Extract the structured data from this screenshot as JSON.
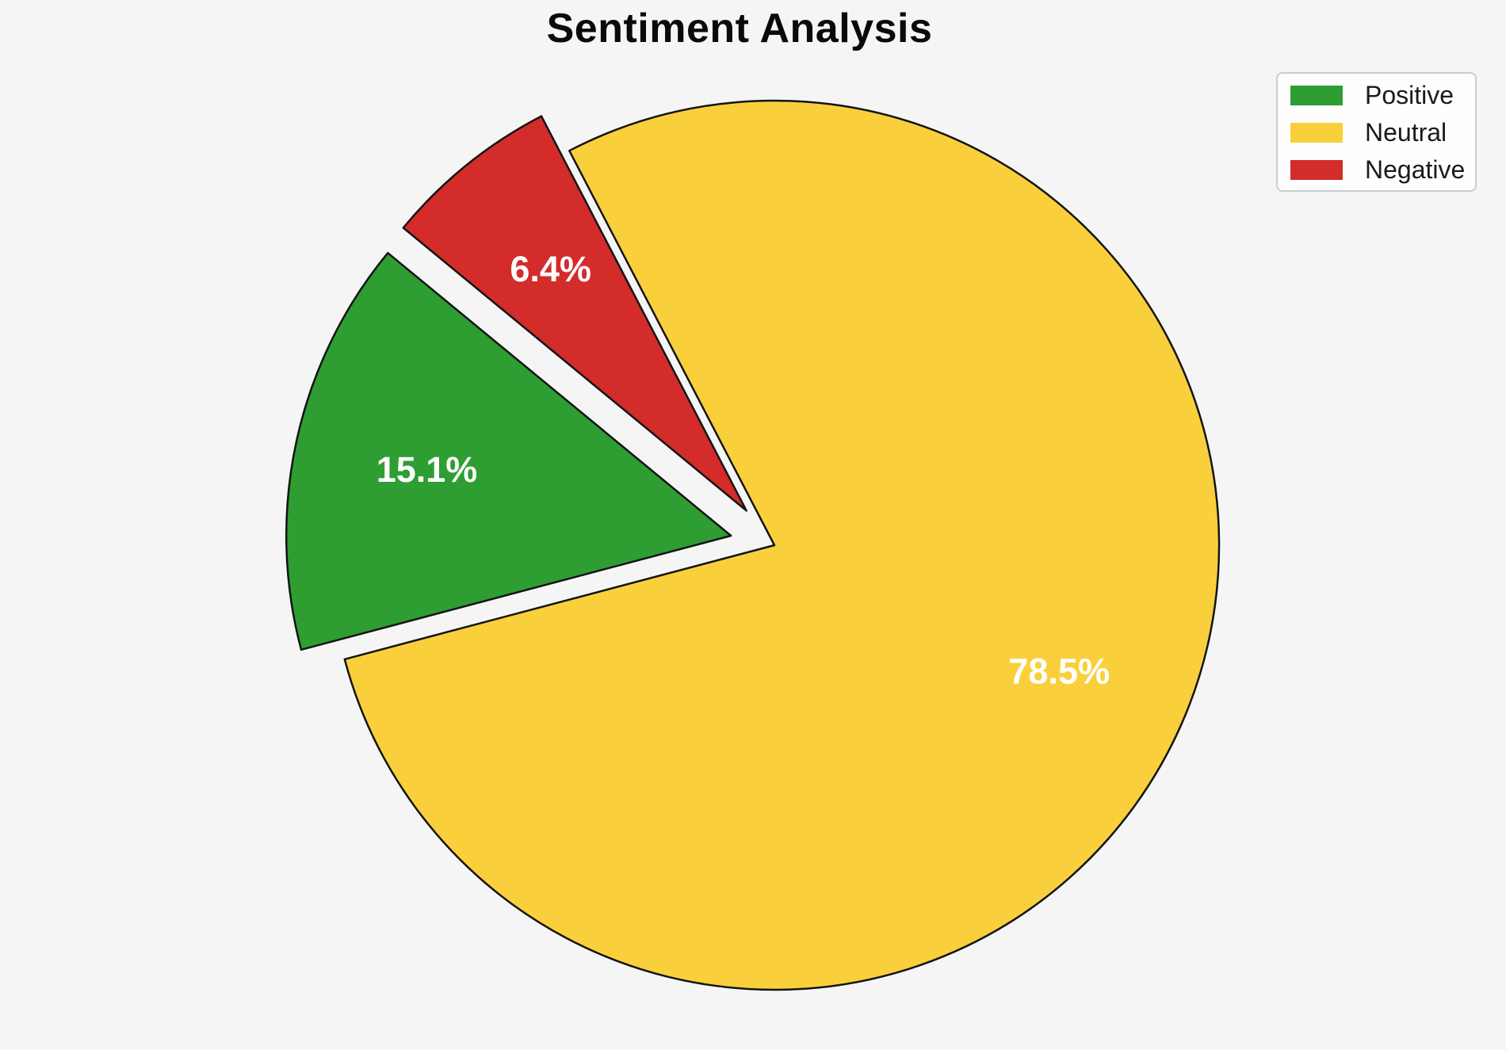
{
  "page": {
    "background": "#f5f5f6"
  },
  "chart_data": {
    "type": "pie",
    "title": "Sentiment Analysis",
    "slices": [
      {
        "label": "Positive",
        "value": 15.1,
        "display_label": "15.1%",
        "color": "#2E9D32",
        "explode": 0.1
      },
      {
        "label": "Neutral",
        "value": 78.5,
        "display_label": "78.5%",
        "color": "#F9D03C",
        "explode": 0
      },
      {
        "label": "Negative",
        "value": 6.4,
        "display_label": "6.4%",
        "color": "#D42B2B",
        "explode": 0.1
      }
    ],
    "start_angle_deg": 140.5,
    "direction": "counterclockwise",
    "pct_label_distance": 0.7,
    "pct_label_color": "#ffffff",
    "wedge_outline_color": "#141414",
    "legend": {
      "position": "upper-right",
      "entries": [
        "Positive",
        "Neutral",
        "Negative"
      ],
      "background": "#fefefe",
      "border_color": "#cccccc",
      "text_color": "#1a1a1a"
    }
  }
}
